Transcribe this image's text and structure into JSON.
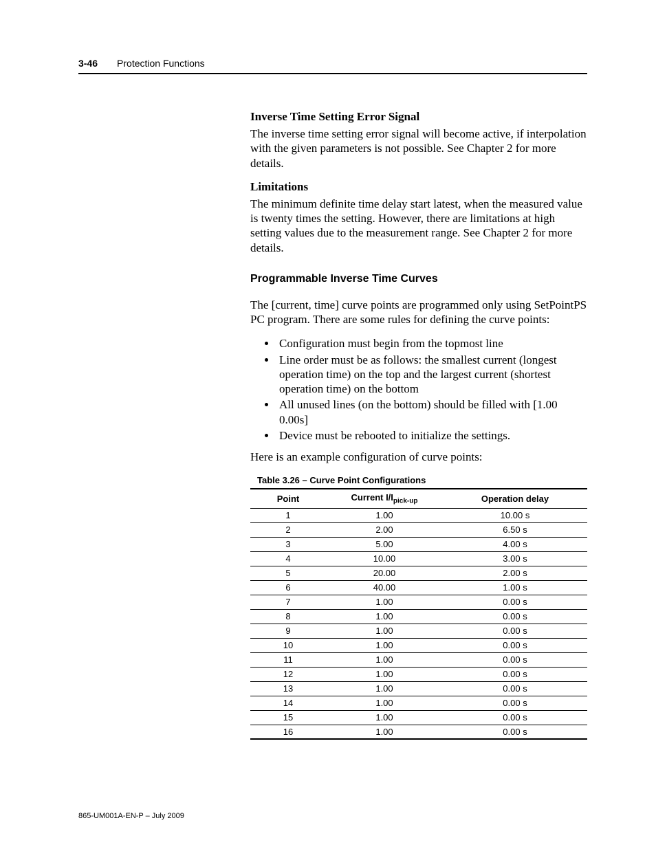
{
  "header": {
    "page_num": "3-46",
    "section": "Protection Functions"
  },
  "sections": {
    "s1": {
      "title": "Inverse Time Setting Error Signal",
      "body": "The inverse time setting error signal will become active, if interpolation with the given parameters is not possible. See Chapter 2 for more details."
    },
    "s2": {
      "title": "Limitations",
      "body": "The minimum definite time delay start latest, when the measured value is twenty times the setting. However, there are limitations at high setting values due to the measurement range. See Chapter 2 for more details."
    },
    "s3": {
      "title": "Programmable Inverse Time Curves",
      "intro": "The [current, time] curve points are programmed only using SetPointPS PC program. There are some rules for defining the curve points:",
      "bullets": [
        "Configuration must begin from the topmost line",
        "Line order must be as follows: the smallest current (longest operation time) on the top and the largest current (shortest operation time) on the bottom",
        "All unused lines (on the bottom) should be filled with [1.00 0.00s]",
        "Device must be rebooted to initialize the settings."
      ],
      "outro": "Here is an example configuration of curve points:"
    }
  },
  "table": {
    "caption": "Table 3.26 – Curve Point Configurations",
    "columns": {
      "c1": "Point",
      "c2_pre": "Current I/I",
      "c2_sub": "pick-up",
      "c3": "Operation delay"
    },
    "rows": [
      {
        "point": "1",
        "current": "1.00",
        "delay": "10.00 s"
      },
      {
        "point": "2",
        "current": "2.00",
        "delay": "6.50 s"
      },
      {
        "point": "3",
        "current": "5.00",
        "delay": "4.00 s"
      },
      {
        "point": "4",
        "current": "10.00",
        "delay": "3.00 s"
      },
      {
        "point": "5",
        "current": "20.00",
        "delay": "2.00 s"
      },
      {
        "point": "6",
        "current": "40.00",
        "delay": "1.00 s"
      },
      {
        "point": "7",
        "current": "1.00",
        "delay": "0.00 s"
      },
      {
        "point": "8",
        "current": "1.00",
        "delay": "0.00 s"
      },
      {
        "point": "9",
        "current": "1.00",
        "delay": "0.00 s"
      },
      {
        "point": "10",
        "current": "1.00",
        "delay": "0.00 s"
      },
      {
        "point": "11",
        "current": "1.00",
        "delay": "0.00 s"
      },
      {
        "point": "12",
        "current": "1.00",
        "delay": "0.00 s"
      },
      {
        "point": "13",
        "current": "1.00",
        "delay": "0.00 s"
      },
      {
        "point": "14",
        "current": "1.00",
        "delay": "0.00 s"
      },
      {
        "point": "15",
        "current": "1.00",
        "delay": "0.00 s"
      },
      {
        "point": "16",
        "current": "1.00",
        "delay": "0.00 s"
      }
    ]
  },
  "footer": "865-UM001A-EN-P – July 2009"
}
